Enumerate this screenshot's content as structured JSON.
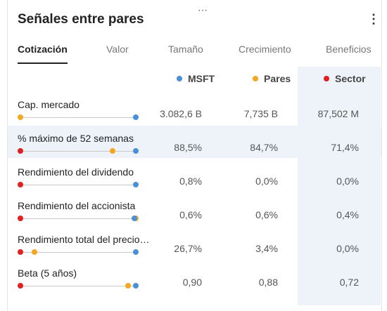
{
  "card": {
    "drag_handle": "⋯",
    "title": "Señales entre pares",
    "more_icon": "⋮"
  },
  "tabs": [
    {
      "label": "Cotización",
      "active": true
    },
    {
      "label": "Valor"
    },
    {
      "label": "Tamaño"
    },
    {
      "label": "Crecimiento"
    },
    {
      "label": "Beneficios"
    }
  ],
  "columns": [
    {
      "label": "MSFT",
      "color": "#4a90d9"
    },
    {
      "label": "Pares",
      "color": "#f5a623"
    },
    {
      "label": "Sector",
      "color": "#e02020"
    }
  ],
  "rows": [
    {
      "label": "Cap. mercado",
      "msft": "3.082,6 B",
      "pares": "7,735 B",
      "sector": "87,502 M",
      "markers": {
        "msft": 1.0,
        "pares": 0.0,
        "sector": null
      }
    },
    {
      "label": "% máximo de 52 semanas",
      "msft": "88,5%",
      "pares": "84,7%",
      "sector": "71,4%",
      "markers": {
        "msft": 1.0,
        "pares": 0.8,
        "sector": 0.0
      }
    },
    {
      "label": "Rendimiento del dividendo",
      "msft": "0,8%",
      "pares": "0,0%",
      "sector": "0,0%",
      "markers": {
        "msft": 1.0,
        "pares": null,
        "sector": 0.0
      }
    },
    {
      "label": "Rendimiento del accionista",
      "msft": "0,6%",
      "pares": "0,6%",
      "sector": "0,4%",
      "markers": {
        "msft": 0.985,
        "pares": 1.0,
        "sector": 0.0
      }
    },
    {
      "label": "Rendimiento total del precio…",
      "msft": "26,7%",
      "pares": "3,4%",
      "sector": "0,0%",
      "markers": {
        "msft": 1.0,
        "pares": 0.12,
        "sector": 0.0
      }
    },
    {
      "label": "Beta (5 años)",
      "msft": "0,90",
      "pares": "0,88",
      "sector": "0,72",
      "markers": {
        "msft": 1.0,
        "pares": 0.93,
        "sector": 0.0
      }
    }
  ]
}
